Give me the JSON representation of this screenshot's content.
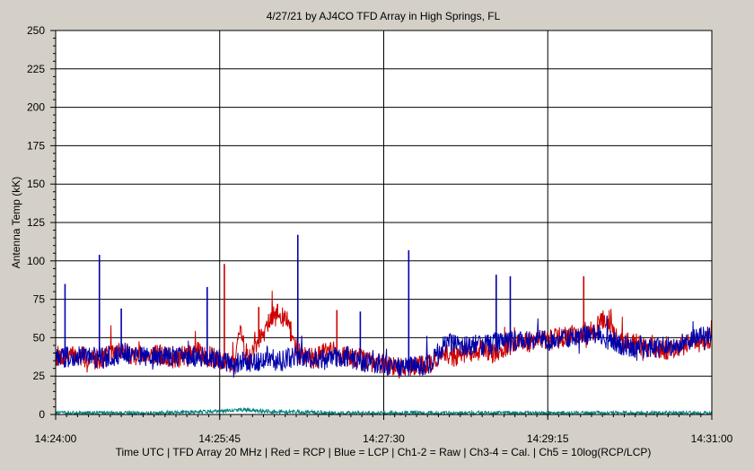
{
  "chart_data": {
    "type": "line",
    "title": "4/27/21  by  AJ4CO TFD Array  in  High Springs, FL",
    "xlabel": "Time UTC | TFD Array 20 MHz | Red = RCP | Blue = LCP | Ch1-2 = Raw | Ch3-4 = Cal. | Ch5 = 10log(RCP/LCP)",
    "ylabel": "Antenna Temp (kK)",
    "x_start": "14:24:00",
    "x_end": "14:31:00",
    "x_ticks": [
      "14:24:00",
      "14:25:45",
      "14:27:30",
      "14:29:15",
      "14:31:00"
    ],
    "y_ticks": [
      0,
      25,
      50,
      75,
      100,
      125,
      150,
      175,
      200,
      225,
      250
    ],
    "ylim": [
      0,
      250
    ],
    "grid": true,
    "series": [
      {
        "name": "RCP",
        "color": "#cc0000",
        "x_seconds": [
          0,
          15,
          25,
          35,
          40,
          45,
          55,
          60,
          70,
          75,
          85,
          90,
          100,
          105,
          115,
          118,
          120,
          125,
          135,
          140,
          148,
          155,
          160,
          165,
          175,
          185,
          190,
          200,
          210,
          225,
          240,
          250,
          255,
          270,
          280,
          290,
          300,
          315,
          330,
          345,
          350,
          360,
          375,
          390,
          400,
          410,
          420
        ],
        "values": [
          38,
          38,
          36,
          39,
          42,
          40,
          38,
          40,
          38,
          36,
          38,
          41,
          37,
          36,
          33,
          55,
          45,
          38,
          60,
          64,
          62,
          40,
          38,
          36,
          42,
          38,
          37,
          35,
          33,
          30,
          33,
          40,
          38,
          42,
          40,
          45,
          47,
          48,
          52,
          55,
          62,
          48,
          45,
          42,
          45,
          47,
          48
        ],
        "spikes": [
          {
            "x_seconds": 108,
            "value": 98
          },
          {
            "x_seconds": 130,
            "value": 70
          },
          {
            "x_seconds": 142,
            "value": 72
          },
          {
            "x_seconds": 180,
            "value": 68
          },
          {
            "x_seconds": 338,
            "value": 90
          }
        ]
      },
      {
        "name": "LCP",
        "color": "#0000aa",
        "x_seconds": [
          0,
          15,
          25,
          35,
          45,
          55,
          60,
          70,
          80,
          90,
          100,
          105,
          115,
          125,
          135,
          145,
          155,
          165,
          175,
          185,
          195,
          205,
          210,
          220,
          240,
          250,
          255,
          270,
          280,
          290,
          300,
          315,
          330,
          345,
          355,
          365,
          375,
          390,
          400,
          410,
          420
        ],
        "values": [
          37,
          38,
          37,
          38,
          40,
          39,
          37,
          38,
          38,
          38,
          37,
          35,
          34,
          34,
          36,
          35,
          38,
          36,
          36,
          38,
          35,
          33,
          32,
          30,
          33,
          47,
          45,
          44,
          46,
          47,
          49,
          48,
          50,
          53,
          48,
          45,
          43,
          44,
          46,
          50,
          52
        ],
        "spikes": [
          {
            "x_seconds": 6,
            "value": 85
          },
          {
            "x_seconds": 28,
            "value": 104
          },
          {
            "x_seconds": 42,
            "value": 69
          },
          {
            "x_seconds": 97,
            "value": 83
          },
          {
            "x_seconds": 155,
            "value": 117
          },
          {
            "x_seconds": 195,
            "value": 67
          },
          {
            "x_seconds": 226,
            "value": 107
          },
          {
            "x_seconds": 282,
            "value": 91
          },
          {
            "x_seconds": 291,
            "value": 90
          }
        ]
      },
      {
        "name": "Ch5",
        "color": "#008080",
        "x_seconds": [
          0,
          60,
          105,
          120,
          135,
          180,
          240,
          300,
          360,
          420
        ],
        "values": [
          1,
          1,
          2,
          3,
          2,
          1,
          1,
          1,
          1,
          1
        ]
      }
    ]
  }
}
